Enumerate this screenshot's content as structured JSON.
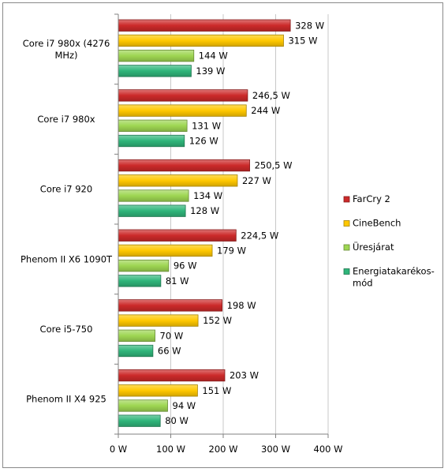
{
  "chart_data": {
    "type": "bar",
    "orientation": "horizontal",
    "categories": [
      "Core i7 980x (4276 MHz)",
      "Core i7 980x",
      "Core i7 920",
      "Phenom II X6 1090T",
      "Core i5-750",
      "Phenom II X4 925"
    ],
    "series": [
      {
        "name": "FarCry 2",
        "color": "#cc2a2a",
        "values": [
          328,
          246.5,
          250.5,
          224.5,
          198,
          203
        ],
        "labels": [
          "328 W",
          "246,5 W",
          "250,5 W",
          "224,5 W",
          "198 W",
          "203 W"
        ]
      },
      {
        "name": "CineBench",
        "color": "#ffc800",
        "values": [
          315,
          244,
          227,
          179,
          152,
          151
        ],
        "labels": [
          "315 W",
          "244 W",
          "227 W",
          "179 W",
          "152 W",
          "151 W"
        ]
      },
      {
        "name": "Üresjárat",
        "color": "#9ed652",
        "values": [
          144,
          131,
          134,
          96,
          70,
          94
        ],
        "labels": [
          "144 W",
          "131 W",
          "134 W",
          "96 W",
          "70 W",
          "94 W"
        ]
      },
      {
        "name": "Energiatakarékos-mód",
        "color": "#2fb57a",
        "values": [
          139,
          126,
          128,
          81,
          66,
          80
        ],
        "labels": [
          "139 W",
          "126 W",
          "128 W",
          "81 W",
          "66 W",
          "80 W"
        ]
      }
    ],
    "legend_lines": [
      [
        "FarCry 2"
      ],
      [
        "CineBench"
      ],
      [
        "Üresjárat"
      ],
      [
        "Energiatakarékos-",
        "mód"
      ]
    ],
    "category_lines": [
      [
        "Core i7 980x (4276",
        "MHz)"
      ],
      [
        "Core i7 980x"
      ],
      [
        "Core i7 920"
      ],
      [
        "Phenom II X6 1090T"
      ],
      [
        "Core i5-750"
      ],
      [
        "Phenom II X4 925"
      ]
    ],
    "xlim": [
      0,
      400
    ],
    "xticks": [
      0,
      100,
      200,
      300,
      400
    ],
    "xtick_labels": [
      "0 W",
      "100 W",
      "200 W",
      "300 W",
      "400 W"
    ],
    "grid": true,
    "legend_position": "right"
  }
}
